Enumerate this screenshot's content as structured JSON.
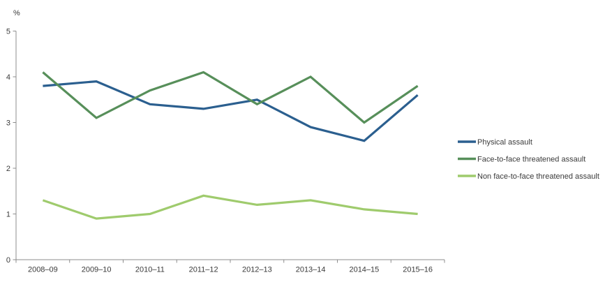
{
  "chart_data": {
    "type": "line",
    "title": "",
    "ylabel": "%",
    "xlabel": "",
    "ylim": [
      0,
      5
    ],
    "yticks": [
      0,
      1,
      2,
      3,
      4,
      5
    ],
    "grid": false,
    "legend_position": "right",
    "categories": [
      "2008–09",
      "2009–10",
      "2010–11",
      "2011–12",
      "2012–13",
      "2013–14",
      "2014–15",
      "2015–16"
    ],
    "series": [
      {
        "name": "Physical assault",
        "color": "#2b5f8f",
        "values": [
          3.8,
          3.9,
          3.4,
          3.3,
          3.5,
          2.9,
          2.6,
          3.6
        ]
      },
      {
        "name": "Face-to-face threatened assault",
        "color": "#578f5a",
        "values": [
          4.1,
          3.1,
          3.7,
          4.1,
          3.4,
          4.0,
          3.0,
          3.8
        ]
      },
      {
        "name": "Non face-to-face threatened assault",
        "color": "#9fcb6d",
        "values": [
          1.3,
          0.9,
          1.0,
          1.4,
          1.2,
          1.3,
          1.1,
          1.0
        ]
      }
    ],
    "axis_color": "#8c8c8c",
    "text_color": "#3a3a3a"
  }
}
